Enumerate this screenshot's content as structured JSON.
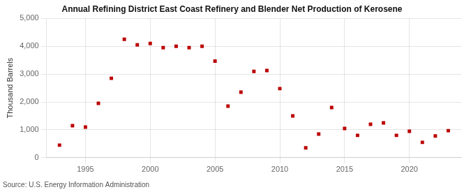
{
  "chart_data": {
    "type": "scatter",
    "title": "Annual Refining District East Coast Refinery and Blender Net Production of Kerosene",
    "ylabel": "Thousand Barrels",
    "annotation": "Source: U.S. Energy Information Administration",
    "x": [
      1993,
      1994,
      1995,
      1996,
      1997,
      1998,
      1999,
      2000,
      2001,
      2002,
      2003,
      2004,
      2005,
      2006,
      2007,
      2008,
      2009,
      2010,
      2011,
      2012,
      2013,
      2014,
      2015,
      2016,
      2017,
      2018,
      2019,
      2020,
      2021,
      2022,
      2023
    ],
    "values": [
      450,
      1150,
      1100,
      1950,
      2850,
      4250,
      4050,
      4100,
      3950,
      4000,
      3950,
      4000,
      3470,
      1850,
      2350,
      3100,
      3130,
      2480,
      1500,
      350,
      850,
      1800,
      1050,
      800,
      1200,
      1250,
      800,
      950,
      550,
      780,
      970
    ],
    "color": "#bb0000",
    "marker": "square",
    "xlim": [
      1992,
      2024
    ],
    "xticks": [
      1995,
      2000,
      2005,
      2010,
      2015,
      2020
    ],
    "ylim": [
      0,
      5000
    ],
    "yticks": [
      0,
      {
        "value": 1000,
        "label": "1,000"
      },
      {
        "value": 2000,
        "label": "2,000"
      },
      {
        "value": 3000,
        "label": "3,000"
      },
      {
        "value": 4000,
        "label": "4,000"
      },
      {
        "value": 5000,
        "label": "5,000"
      }
    ],
    "grid": true
  }
}
